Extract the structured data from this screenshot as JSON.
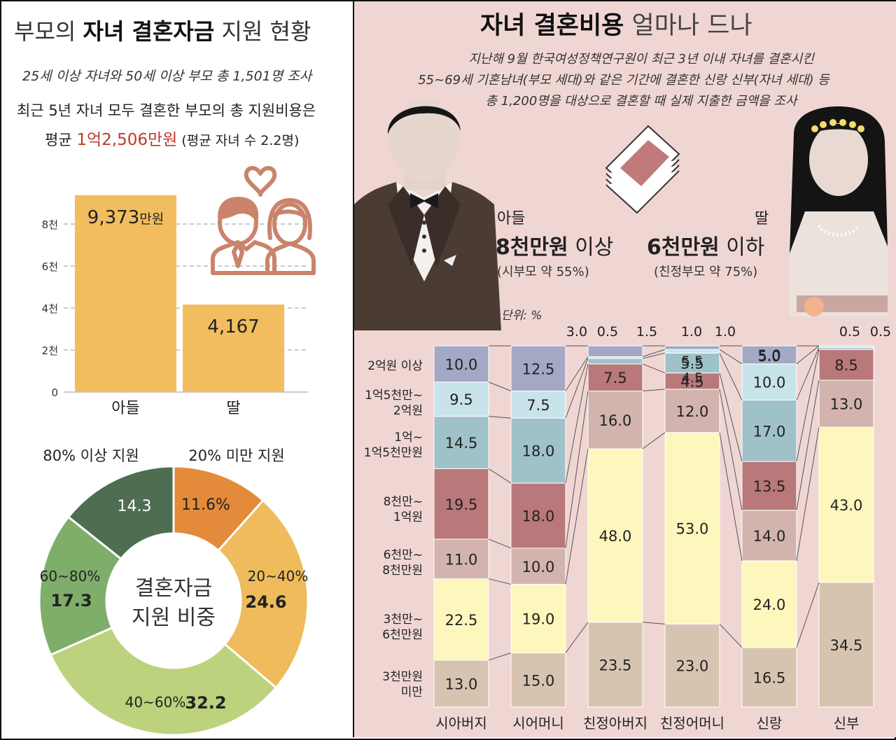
{
  "left": {
    "title_pre": "부모의 ",
    "title_bold": "자녀 결혼자금",
    "title_post": " 지원 현황",
    "subtitle": "25세 이상 자녀와 50세 이상 부모 총 1,501명 조사",
    "desc_line1": "최근 5년 자녀 모두 결혼한 부모의 총 지원비용은",
    "desc_avg_label": "평균 ",
    "desc_avg_value": "1억2,506만원",
    "desc_avg_note": " (평균 자녀 수 2.2명)"
  },
  "colors": {
    "bar_gold": "#f2bd5f",
    "accent_red": "#c0392b",
    "donut_dark": "#4e6e52",
    "donut_orange": "#e38b3a",
    "donut_gold": "#efbb5c",
    "donut_lightgreen": "#bcd27c",
    "donut_green": "#7fad6a",
    "icon_brown": "#c9846b"
  },
  "chart_data": [
    {
      "type": "bar",
      "categories": [
        "아들",
        "딸"
      ],
      "values": [
        9373,
        4167
      ],
      "value_labels": [
        "9,373",
        "4,167"
      ],
      "value_unit_first": "만원",
      "yticks": [
        0,
        2000,
        4000,
        6000,
        8000
      ],
      "ytick_labels": [
        "0",
        "2천",
        "4천",
        "6천",
        "8천"
      ],
      "ylim": [
        0,
        10000
      ]
    },
    {
      "type": "pie",
      "center_label_line1": "결혼자금",
      "center_label_line2": "지원 비중",
      "slices": [
        {
          "label": "20% 미만 지원",
          "value": 11.6,
          "value_label": "11.6%",
          "color": "#e38b3a"
        },
        {
          "label": "20~40%",
          "value": 24.6,
          "value_label": "24.6",
          "color": "#efbb5c"
        },
        {
          "label": "40~60%",
          "value": 32.2,
          "value_label": "32.2",
          "color": "#bcd27c"
        },
        {
          "label": "60~80%",
          "value": 17.3,
          "value_label": "17.3",
          "color": "#7fad6a"
        },
        {
          "label": "80% 이상 지원",
          "value": 14.3,
          "value_label": "14.3",
          "color": "#4e6e52"
        }
      ]
    },
    {
      "type": "bar",
      "stacked": true,
      "unit_label": "단위: %",
      "categories": [
        "시아버지",
        "시어머니",
        "친정아버지",
        "친정어머니",
        "신랑",
        "신부"
      ],
      "series": [
        {
          "name": "3천만원 미만",
          "color": "#d7c4b0",
          "values": [
            13.0,
            15.0,
            23.5,
            23.0,
            16.5,
            34.5
          ]
        },
        {
          "name": "3천만~6천만원",
          "color": "#fdf7bd",
          "values": [
            22.5,
            19.0,
            48.0,
            53.0,
            24.0,
            43.0
          ]
        },
        {
          "name": "6천만~8천만원",
          "color": "#d2b3ae",
          "values": [
            11.0,
            10.0,
            16.0,
            12.0,
            14.0,
            13.0
          ]
        },
        {
          "name": "8천만~1억원",
          "color": "#b9787a",
          "values": [
            19.5,
            18.0,
            7.5,
            4.5,
            13.5,
            8.5
          ]
        },
        {
          "name": "1억~1억5천만원",
          "color": "#9ec2c8",
          "values": [
            14.5,
            18.0,
            1.5,
            5.5,
            17.0,
            0.5
          ]
        },
        {
          "name": "1억5천만~2억원",
          "color": "#c9e3ea",
          "values": [
            9.5,
            7.5,
            0.5,
            1.0,
            10.0,
            0.5
          ]
        },
        {
          "name": "2억원 이상",
          "color": "#a3a9c4",
          "values": [
            10.0,
            12.5,
            3.0,
            1.0,
            5.0,
            0.0
          ]
        }
      ],
      "value_labels": [
        [
          "13.0",
          "22.5",
          "11.0",
          "19.5",
          "14.5",
          "9.5",
          "10.0"
        ],
        [
          "15.0",
          "19.0",
          "10.0",
          "18.0",
          "18.0",
          "7.5",
          "12.5"
        ],
        [
          "23.5",
          "48.0",
          "16.0",
          "7.5",
          "1.5",
          "0.5",
          "3.0"
        ],
        [
          "23.0",
          "53.0",
          "12.0",
          "4.5",
          "5.5",
          "1.0",
          "1.0"
        ],
        [
          "16.5",
          "24.0",
          "14.0",
          "13.5",
          "17.0",
          "10.0",
          "5.0"
        ],
        [
          "34.5",
          "43.0",
          "13.0",
          "8.5",
          "0.5",
          "0.5",
          ""
        ]
      ],
      "row_labels": [
        [
          "3천만원",
          "미만"
        ],
        [
          "3천만~",
          "6천만원"
        ],
        [
          "6천만~",
          "8천만원"
        ],
        [
          "8천만~",
          "1억원"
        ],
        [
          "1억~",
          "1억5천만원"
        ],
        [
          "1억5천만~",
          "2억원"
        ],
        [
          "2억원 이상"
        ]
      ]
    }
  ],
  "right": {
    "title_bold": "자녀 결혼비용",
    "title_rest": " 얼마나 드나",
    "desc_line1": "지난해 9월 한국여성정책연구원이 최근 3년 이내 자녀를 결혼시킨",
    "desc_line2": "55~69세 기혼남녀(부모 세대)와 같은 기간에 결혼한 신랑 신부(자녀 세대) 등",
    "desc_line3": "총 1,200명을 대상으로 결혼할 때 실제 지출한 금액을 조사",
    "son_label": "아들",
    "son_value": "8천만원",
    "son_suffix": " 이상",
    "son_note": "(시부모 약 55%)",
    "daughter_label": "딸",
    "daughter_value": "6천만원",
    "daughter_suffix": " 이하",
    "daughter_note": "(친정부모 약 75%)"
  }
}
